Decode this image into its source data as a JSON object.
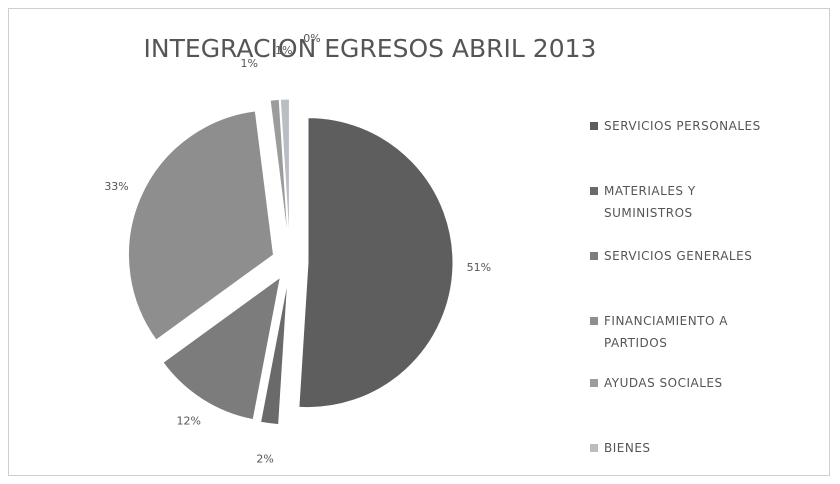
{
  "chart_data": {
    "type": "pie",
    "title": "INTEGRACION EGRESOS ABRIL 2013",
    "categories": [
      "SERVICIOS PERSONALES",
      "MATERIALES Y SUMINISTROS",
      "SERVICIOS GENERALES",
      "FINANCIAMIENTO A PARTIDOS",
      "AYUDAS SOCIALES",
      "BIENES",
      null
    ],
    "values": [
      51,
      2,
      12,
      33,
      1,
      1,
      0
    ],
    "value_labels": [
      "51%",
      "2%",
      "12%",
      "33%",
      "1%",
      "1%",
      "0%"
    ],
    "colors": [
      "#5e5e5e",
      "#6a6a6a",
      "#7c7c7c",
      "#8e8e8e",
      "#9c9c9c",
      "#b9bec4",
      "#d6d8da"
    ],
    "legend": "right"
  }
}
